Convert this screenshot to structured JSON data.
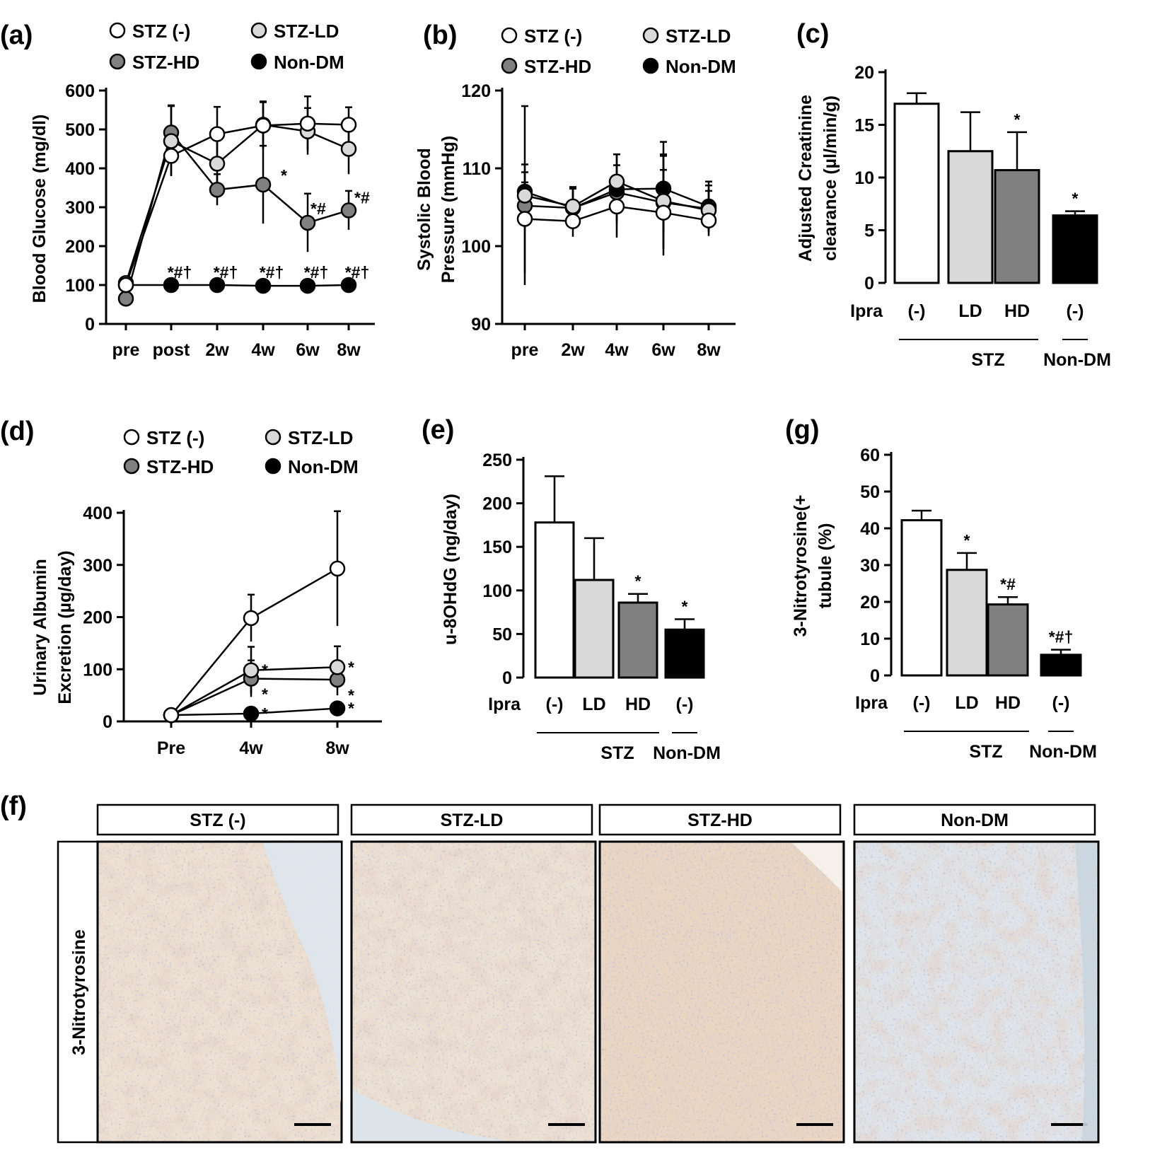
{
  "colors": {
    "stz_minus": "#ffffff",
    "stz_ld": "#d9d9d9",
    "stz_hd": "#808080",
    "non_dm": "#000000",
    "axis": "#000000"
  },
  "legend": {
    "stz_minus": "STZ (-)",
    "stz_ld": "STZ-LD",
    "stz_hd": "STZ-HD",
    "non_dm": "Non-DM"
  },
  "groups": {
    "ipra": "Ipra",
    "minus": "(-)",
    "ld": "LD",
    "hd": "HD",
    "stz": "STZ",
    "nondm": "Non-DM"
  },
  "chart_data": [
    {
      "id": "a",
      "panel_label": "(a)",
      "type": "line",
      "title": "",
      "xlabel": "",
      "ylabel": "Blood Glucose (mg/dl)",
      "x": [
        "pre",
        "post",
        "2w",
        "4w",
        "6w",
        "8w"
      ],
      "ylim": [
        0,
        600
      ],
      "yticks": [
        0,
        100,
        200,
        300,
        400,
        500,
        600
      ],
      "series": [
        {
          "name": "STZ (-)",
          "values": [
            100,
            432,
            488,
            510,
            515,
            512
          ],
          "err": [
            10,
            50,
            70,
            60,
            70,
            45
          ]
        },
        {
          "name": "STZ-LD",
          "values": [
            105,
            470,
            412,
            512,
            495,
            450
          ],
          "err": [
            10,
            90,
            60,
            60,
            60,
            65
          ]
        },
        {
          "name": "STZ-HD",
          "values": [
            65,
            492,
            345,
            358,
            260,
            292
          ],
          "err": [
            8,
            70,
            40,
            100,
            75,
            50
          ]
        },
        {
          "name": "Non-DM",
          "values": [
            100,
            100,
            100,
            98,
            98,
            100
          ],
          "err": [
            5,
            6,
            6,
            6,
            6,
            6
          ]
        }
      ],
      "annotations": [
        {
          "text": "*",
          "x": "4w"
        },
        {
          "text": "*#",
          "x": "6w"
        },
        {
          "text": "*#",
          "x": "8w"
        },
        {
          "text": "*#†",
          "x": "post"
        },
        {
          "text": "*#†",
          "x": "2w"
        },
        {
          "text": "*#†",
          "x": "4w"
        },
        {
          "text": "*#†",
          "x": "6w"
        },
        {
          "text": "*#†",
          "x": "8w"
        }
      ]
    },
    {
      "id": "b",
      "panel_label": "(b)",
      "type": "line",
      "title": "",
      "xlabel": "",
      "ylabel": "Systolic Blood Pressure (mmHg)",
      "ylabel_lines": [
        "Systolic Blood",
        "Pressure (mmHg)"
      ],
      "x": [
        "pre",
        "2w",
        "4w",
        "6w",
        "8w"
      ],
      "ylim": [
        90,
        120
      ],
      "yticks": [
        90,
        100,
        110,
        120
      ],
      "series": [
        {
          "name": "STZ (-)",
          "values": [
            103.5,
            103.2,
            105.1,
            104.3,
            103.3
          ],
          "err": [
            7,
            2,
            4,
            5.5,
            2
          ]
        },
        {
          "name": "STZ-LD",
          "values": [
            106.5,
            105.1,
            108.3,
            105.8,
            104.6
          ],
          "err": [
            11.5,
            2.5,
            3.5,
            6,
            2.5
          ]
        },
        {
          "name": "STZ-HD",
          "values": [
            105.2,
            104.9,
            106.9,
            105.6,
            104.8
          ],
          "err": [
            3,
            2.5,
            3.5,
            6,
            3
          ]
        },
        {
          "name": "Non-DM",
          "values": [
            107.0,
            104.9,
            107.3,
            107.4,
            105.1
          ],
          "err": [
            2.5,
            2.5,
            4.5,
            6,
            3.2
          ]
        }
      ]
    },
    {
      "id": "c",
      "panel_label": "(c)",
      "type": "bar",
      "title": "",
      "xlabel": "",
      "ylabel": "Adjusted Creatinine clearance (µl/min/g)",
      "ylabel_lines": [
        "Adjusted Creatinine",
        "clearance (µl/min/g)"
      ],
      "categories": [
        "(-)",
        "LD",
        "HD",
        "(-)"
      ],
      "values": [
        17.0,
        12.5,
        10.7,
        6.4
      ],
      "err": [
        1.0,
        3.7,
        3.6,
        0.4
      ],
      "sig": [
        "",
        "",
        "*",
        "*"
      ],
      "ylim": [
        0,
        20
      ],
      "yticks": [
        0,
        5,
        10,
        15,
        20
      ]
    },
    {
      "id": "d",
      "panel_label": "(d)",
      "type": "line",
      "title": "",
      "xlabel": "",
      "ylabel": "Urinary Albumin Excretion (µg/day)",
      "ylabel_lines": [
        "Urinary Albumin",
        "Excretion (µg/day)"
      ],
      "x": [
        "Pre",
        "4w",
        "8w"
      ],
      "ylim": [
        0,
        400
      ],
      "yticks": [
        0,
        100,
        200,
        300,
        400
      ],
      "series": [
        {
          "name": "STZ (-)",
          "values": [
            12,
            198,
            293
          ],
          "err": [
            3,
            45,
            110
          ],
          "sig": [
            "",
            "",
            ""
          ]
        },
        {
          "name": "STZ-LD",
          "values": [
            12,
            98,
            104
          ],
          "err": [
            3,
            45,
            40
          ],
          "sig": [
            "",
            "*",
            "*"
          ]
        },
        {
          "name": "STZ-HD",
          "values": [
            12,
            82,
            80
          ],
          "err": [
            3,
            35,
            30
          ],
          "sig": [
            "",
            "*",
            "*"
          ]
        },
        {
          "name": "Non-DM",
          "values": [
            12,
            15,
            25
          ],
          "err": [
            3,
            4,
            5
          ],
          "sig": [
            "",
            "*",
            "*"
          ]
        }
      ]
    },
    {
      "id": "e",
      "panel_label": "(e)",
      "type": "bar",
      "title": "",
      "xlabel": "",
      "ylabel": "u-8OHdG (ng/day)",
      "categories": [
        "(-)",
        "LD",
        "HD",
        "(-)"
      ],
      "values": [
        178,
        112,
        86,
        55
      ],
      "err": [
        53,
        48,
        10,
        12
      ],
      "sig": [
        "",
        "",
        "*",
        "*"
      ],
      "ylim": [
        0,
        250
      ],
      "yticks": [
        0,
        50,
        100,
        150,
        200,
        250
      ]
    },
    {
      "id": "g",
      "panel_label": "(g)",
      "type": "bar",
      "title": "",
      "xlabel": "",
      "ylabel": "3-Nitrotyrosine(+) tubule (%)",
      "ylabel_lines": [
        "3-Nitrotyrosine(+",
        "tubule (%)"
      ],
      "categories": [
        "(-)",
        "LD",
        "HD",
        "(-)"
      ],
      "values": [
        42.2,
        28.7,
        19.3,
        5.6
      ],
      "err": [
        2.6,
        4.6,
        2.0,
        1.4
      ],
      "sig": [
        "",
        "*",
        "*#",
        "*#†"
      ],
      "ylim": [
        0,
        60
      ],
      "yticks": [
        0,
        10,
        20,
        30,
        40,
        50,
        60
      ]
    }
  ],
  "panel_f": {
    "label": "(f)",
    "row_label": "3-Nitrotyrosine",
    "titles": [
      "STZ (-)",
      "STZ-LD",
      "STZ-HD",
      "Non-DM"
    ]
  }
}
